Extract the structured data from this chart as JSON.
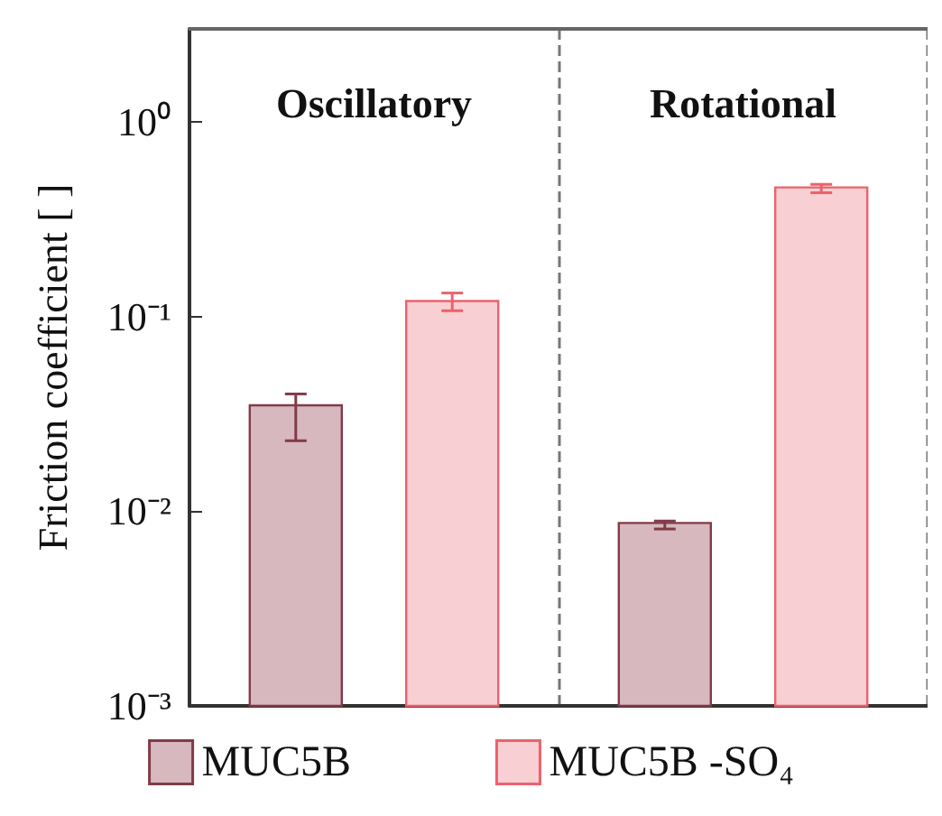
{
  "chart_data": {
    "type": "bar",
    "categories": [
      "Oscillatory",
      "Rotational"
    ],
    "ylabel": "Friction coefficient [ ]",
    "log": true,
    "ylim": [
      0.001,
      3
    ],
    "yticks": [
      {
        "value": 0.001,
        "label": "10⁻³"
      },
      {
        "value": 0.01,
        "label": "10⁻²"
      },
      {
        "value": 0.1,
        "label": "10⁻¹"
      },
      {
        "value": 1,
        "label": "10⁰"
      }
    ],
    "series": [
      {
        "name": "MUC5B",
        "color": "#d7b8bf",
        "values": [
          0.035,
          0.0087
        ],
        "errors": [
          [
            0.023,
            0.04
          ],
          [
            0.0081,
            0.0089
          ]
        ]
      },
      {
        "name": "MUC5B -SO₄",
        "color": "#f8d0d4",
        "values": [
          0.12,
          0.46
        ],
        "errors": [
          [
            0.107,
            0.132
          ],
          [
            0.432,
            0.477
          ]
        ]
      }
    ],
    "grid": "x",
    "legend": "bottom"
  }
}
